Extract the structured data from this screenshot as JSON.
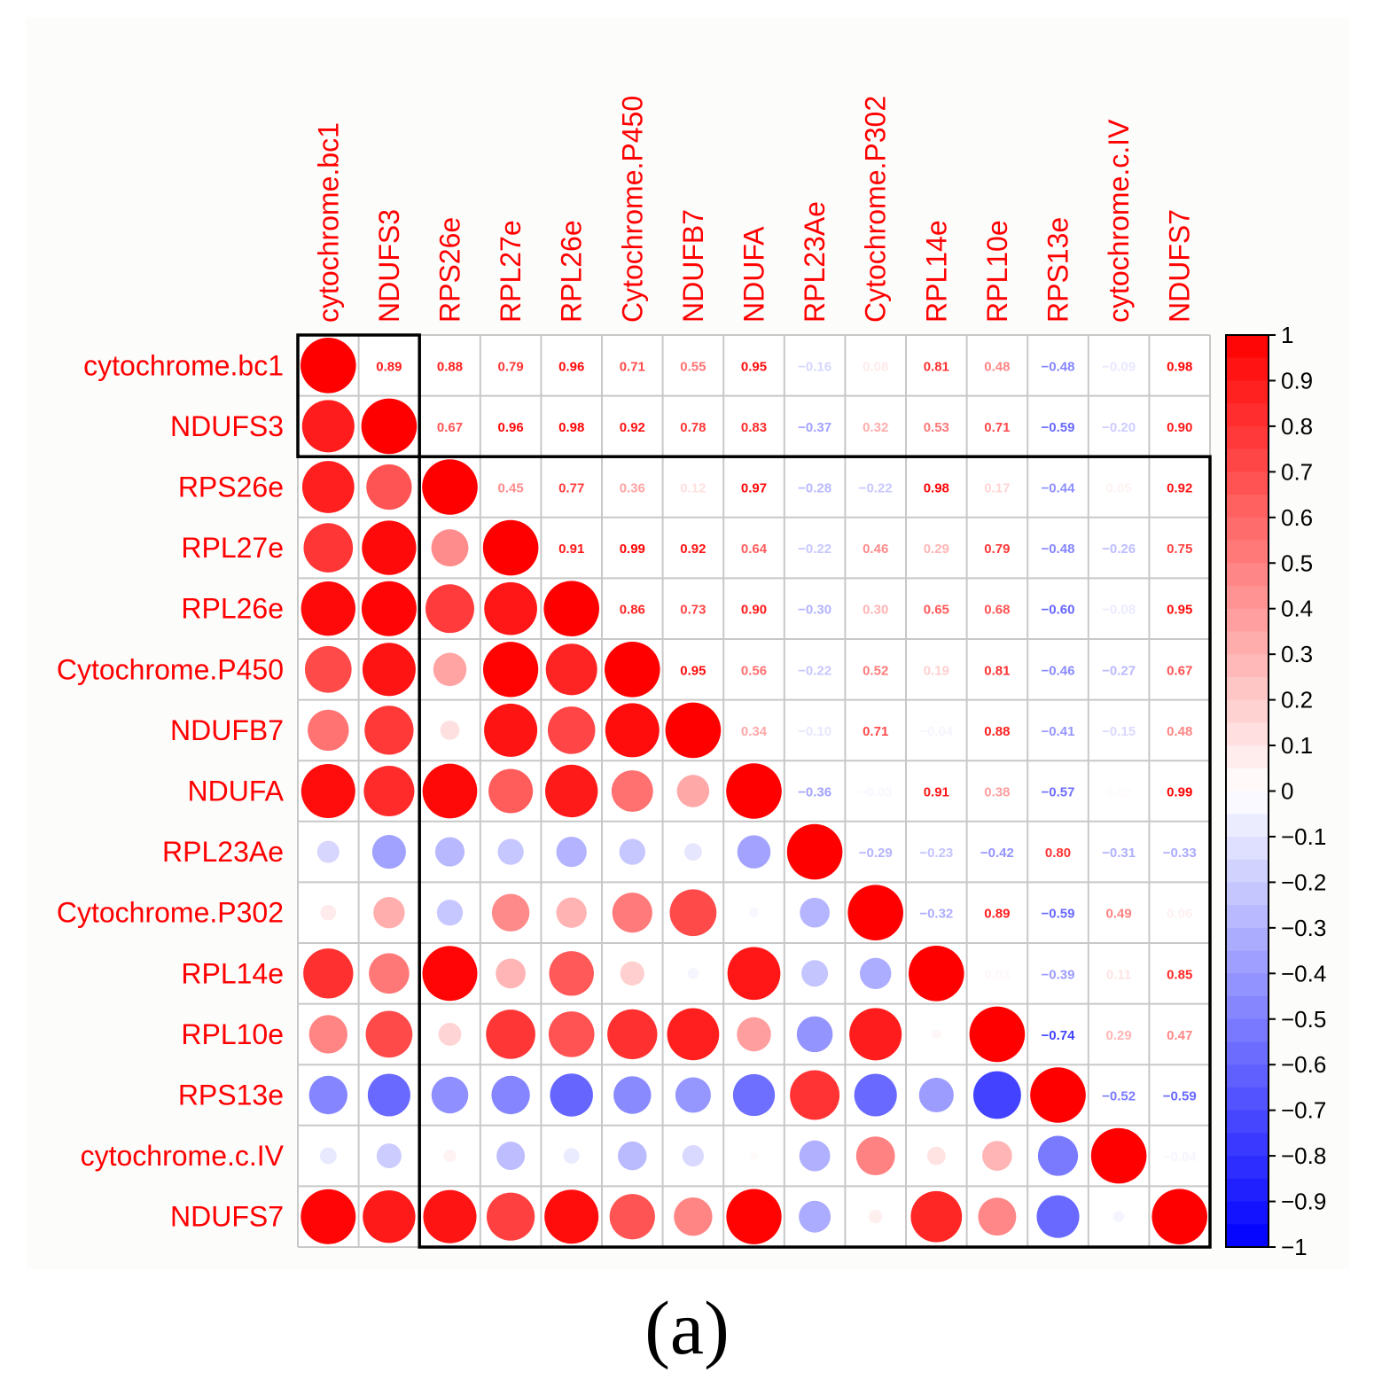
{
  "chart_data": {
    "type": "heatmap",
    "style": "correlation matrix (corrplot mixed: circles lower triangle, numbers upper triangle)",
    "variables": [
      "cytochrome.bc1",
      "NDUFS3",
      "RPS26e",
      "RPL27e",
      "RPL26e",
      "Cytochrome.P450",
      "NDUFB7",
      "NDUFA",
      "RPL23Ae",
      "Cytochrome.P302",
      "RPL14e",
      "RPL10e",
      "RPS13e",
      "cytochrome.c.IV",
      "NDUFS7"
    ],
    "matrix": [
      [
        1,
        0.89,
        0.88,
        0.79,
        0.96,
        0.71,
        0.55,
        0.95,
        -0.16,
        0.08,
        0.81,
        0.48,
        -0.48,
        -0.09,
        0.98
      ],
      [
        0.89,
        1,
        0.67,
        0.96,
        0.98,
        0.92,
        0.78,
        0.83,
        -0.37,
        0.32,
        0.53,
        0.71,
        -0.59,
        -0.2,
        0.9
      ],
      [
        0.88,
        0.67,
        1,
        0.45,
        0.77,
        0.36,
        0.12,
        0.97,
        -0.28,
        -0.22,
        0.98,
        0.17,
        -0.44,
        0.05,
        0.92
      ],
      [
        0.79,
        0.96,
        0.45,
        1,
        0.91,
        0.99,
        0.92,
        0.64,
        -0.22,
        0.46,
        0.29,
        0.79,
        -0.48,
        -0.26,
        0.75
      ],
      [
        0.96,
        0.98,
        0.77,
        0.91,
        1,
        0.86,
        0.73,
        0.9,
        -0.3,
        0.3,
        0.65,
        0.68,
        -0.6,
        -0.08,
        0.95
      ],
      [
        0.71,
        0.92,
        0.36,
        0.99,
        0.86,
        1,
        0.95,
        0.56,
        -0.22,
        0.52,
        0.19,
        0.81,
        -0.46,
        -0.27,
        0.67
      ],
      [
        0.55,
        0.78,
        0.12,
        0.92,
        0.73,
        0.95,
        1,
        0.34,
        -0.1,
        0.71,
        -0.04,
        0.88,
        -0.41,
        -0.15,
        0.48
      ],
      [
        0.95,
        0.83,
        0.97,
        0.64,
        0.9,
        0.56,
        0.34,
        1,
        -0.36,
        -0.03,
        0.91,
        0.38,
        -0.57,
        0.02,
        0.99
      ],
      [
        -0.16,
        -0.37,
        -0.28,
        -0.22,
        -0.3,
        -0.22,
        -0.1,
        -0.36,
        1,
        -0.29,
        -0.23,
        -0.42,
        0.8,
        -0.31,
        -0.33
      ],
      [
        0.08,
        0.32,
        -0.22,
        0.46,
        0.3,
        0.52,
        0.71,
        -0.03,
        -0.29,
        1,
        -0.32,
        0.89,
        -0.59,
        0.49,
        0.06
      ],
      [
        0.81,
        0.53,
        0.98,
        0.29,
        0.65,
        0.19,
        -0.04,
        0.91,
        -0.23,
        -0.32,
        1,
        0.03,
        -0.39,
        0.11,
        0.85
      ],
      [
        0.48,
        0.71,
        0.17,
        0.79,
        0.68,
        0.81,
        0.88,
        0.38,
        -0.42,
        0.89,
        0.03,
        1,
        -0.74,
        0.29,
        0.47
      ],
      [
        -0.48,
        -0.59,
        -0.44,
        -0.48,
        -0.6,
        -0.46,
        -0.41,
        -0.57,
        0.8,
        -0.59,
        -0.39,
        -0.74,
        1,
        -0.52,
        -0.59
      ],
      [
        -0.09,
        -0.2,
        0.05,
        -0.26,
        -0.08,
        -0.27,
        -0.15,
        0.02,
        -0.31,
        0.49,
        0.11,
        0.29,
        -0.52,
        1,
        -0.04
      ],
      [
        0.98,
        0.9,
        0.92,
        0.75,
        0.95,
        0.67,
        0.48,
        0.99,
        -0.33,
        0.06,
        0.85,
        0.47,
        -0.59,
        -0.04,
        1
      ]
    ],
    "clusters": [
      {
        "from": "cytochrome.bc1",
        "to": "NDUFS3"
      },
      {
        "from": "RPS26e",
        "to": "NDUFS7"
      }
    ],
    "colorbar": {
      "range": [
        -1,
        1
      ],
      "ticks": [
        "1",
        "0.9",
        "0.8",
        "0.7",
        "0.6",
        "0.5",
        "0.4",
        "0.3",
        "0.2",
        "0.1",
        "0",
        "−0.1",
        "−0.2",
        "−0.3",
        "−0.4",
        "−0.5",
        "−0.6",
        "−0.7",
        "−0.8",
        "−0.9",
        "−1"
      ]
    },
    "colors": {
      "positive": "#ff0000",
      "negative": "#0000ff",
      "neutral": "#ffffff",
      "label": "#ff0000",
      "grid": "#c8c8c8",
      "cluster_box": "#000000"
    }
  },
  "panel_label": "(a)"
}
